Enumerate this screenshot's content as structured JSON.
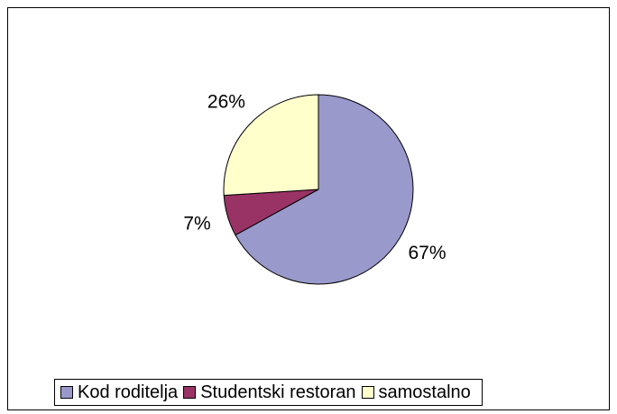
{
  "chart_data": {
    "type": "pie",
    "categories": [
      "Kod roditelja",
      "Studentski restoran",
      "samostalno"
    ],
    "values": [
      67,
      7,
      26
    ],
    "value_labels": [
      "67%",
      "7%",
      "26%"
    ],
    "colors": [
      "#9999cc",
      "#993366",
      "#ffffcc"
    ],
    "legend": "bottom"
  }
}
